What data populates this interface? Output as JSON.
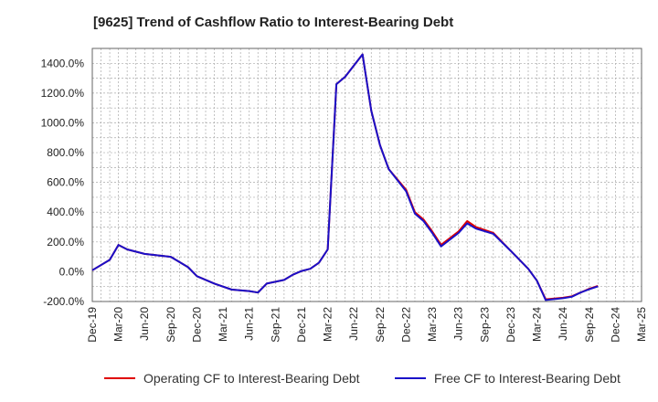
{
  "chart_data": {
    "type": "line",
    "title": "[9625]  Trend of Cashflow Ratio to Interest-Bearing Debt",
    "xlabel": "",
    "ylabel": "",
    "ylim": [
      -200,
      1500
    ],
    "yticks": [
      "-200.0%",
      "0.0%",
      "200.0%",
      "400.0%",
      "600.0%",
      "800.0%",
      "1000.0%",
      "1200.0%",
      "1400.0%"
    ],
    "ytick_values": [
      -200,
      0,
      200,
      400,
      600,
      800,
      1000,
      1200,
      1400
    ],
    "xticks": [
      "Dec-19",
      "Mar-20",
      "Jun-20",
      "Sep-20",
      "Dec-20",
      "Mar-21",
      "Jun-21",
      "Sep-21",
      "Dec-21",
      "Mar-22",
      "Jun-22",
      "Sep-22",
      "Dec-22",
      "Mar-23",
      "Jun-23",
      "Sep-23",
      "Dec-23",
      "Mar-24",
      "Jun-24",
      "Sep-24",
      "Dec-24",
      "Mar-25"
    ],
    "months_total": 63,
    "grid": true,
    "legend_position": "bottom",
    "series": [
      {
        "name": "Operating CF to Interest-Bearing Debt",
        "color": "#e00000",
        "points": [
          [
            0,
            10
          ],
          [
            2,
            80
          ],
          [
            3,
            180
          ],
          [
            4,
            150
          ],
          [
            6,
            120
          ],
          [
            9,
            100
          ],
          [
            11,
            30
          ],
          [
            12,
            -30
          ],
          [
            14,
            -80
          ],
          [
            16,
            -120
          ],
          [
            18,
            -130
          ],
          [
            19,
            -140
          ],
          [
            20,
            -80
          ],
          [
            22,
            -55
          ],
          [
            23,
            -20
          ],
          [
            24,
            5
          ],
          [
            25,
            20
          ],
          [
            26,
            60
          ],
          [
            27,
            150
          ],
          [
            28,
            1260
          ],
          [
            29,
            1310
          ],
          [
            31,
            1460
          ],
          [
            32,
            1080
          ],
          [
            33,
            850
          ],
          [
            34,
            690
          ],
          [
            36,
            550
          ],
          [
            37,
            400
          ],
          [
            38,
            350
          ],
          [
            39,
            270
          ],
          [
            40,
            180
          ],
          [
            42,
            270
          ],
          [
            43,
            340
          ],
          [
            44,
            300
          ],
          [
            46,
            260
          ],
          [
            48,
            140
          ],
          [
            50,
            20
          ],
          [
            51,
            -60
          ],
          [
            52,
            -185
          ],
          [
            54,
            -175
          ],
          [
            55,
            -165
          ],
          [
            56,
            -140
          ],
          [
            57,
            -115
          ],
          [
            58,
            -95
          ]
        ]
      },
      {
        "name": "Free CF to Interest-Bearing Debt",
        "color": "#1a10c8",
        "points": [
          [
            0,
            10
          ],
          [
            2,
            80
          ],
          [
            3,
            180
          ],
          [
            4,
            150
          ],
          [
            6,
            120
          ],
          [
            9,
            100
          ],
          [
            11,
            30
          ],
          [
            12,
            -30
          ],
          [
            14,
            -80
          ],
          [
            16,
            -120
          ],
          [
            18,
            -130
          ],
          [
            19,
            -140
          ],
          [
            20,
            -80
          ],
          [
            22,
            -55
          ],
          [
            23,
            -20
          ],
          [
            24,
            5
          ],
          [
            25,
            20
          ],
          [
            26,
            60
          ],
          [
            27,
            150
          ],
          [
            28,
            1260
          ],
          [
            29,
            1310
          ],
          [
            31,
            1460
          ],
          [
            32,
            1080
          ],
          [
            33,
            850
          ],
          [
            34,
            690
          ],
          [
            36,
            540
          ],
          [
            37,
            390
          ],
          [
            38,
            340
          ],
          [
            39,
            260
          ],
          [
            40,
            170
          ],
          [
            42,
            260
          ],
          [
            43,
            325
          ],
          [
            44,
            290
          ],
          [
            46,
            255
          ],
          [
            48,
            140
          ],
          [
            50,
            20
          ],
          [
            51,
            -60
          ],
          [
            52,
            -190
          ],
          [
            54,
            -178
          ],
          [
            55,
            -168
          ],
          [
            56,
            -140
          ],
          [
            57,
            -118
          ],
          [
            58,
            -98
          ]
        ]
      }
    ]
  }
}
